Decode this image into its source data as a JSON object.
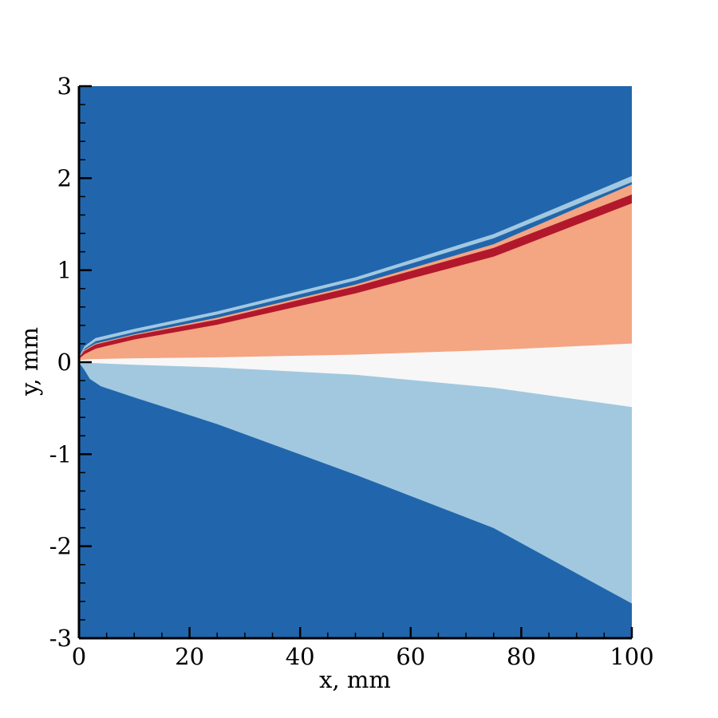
{
  "chart_data": {
    "type": "contour",
    "title": "",
    "xlabel": "x, mm",
    "ylabel": "y, mm",
    "xlim": [
      0,
      100
    ],
    "ylim": [
      -3,
      3
    ],
    "x_ticks": [
      0,
      20,
      40,
      60,
      80,
      100
    ],
    "x_tick_labels": [
      "0",
      "20",
      "40",
      "60",
      "80",
      "100"
    ],
    "y_ticks": [
      -3,
      -2,
      -1,
      0,
      1,
      2,
      3
    ],
    "y_tick_labels": [
      "-3",
      "-2",
      "-1",
      "0",
      "1",
      "2",
      "3"
    ],
    "grid": false,
    "legend": "none",
    "background_color": "#2166ac",
    "bands": [
      {
        "color": "#a2c8e0",
        "description": "upper thin light-blue layer",
        "top": [
          [
            0,
            0.05
          ],
          [
            1,
            0.17
          ],
          [
            3,
            0.26
          ],
          [
            10,
            0.36
          ],
          [
            25,
            0.55
          ],
          [
            50,
            0.92
          ],
          [
            75,
            1.39
          ],
          [
            100,
            2.02
          ]
        ],
        "bottom": [
          [
            0,
            0.05
          ],
          [
            1,
            0.15
          ],
          [
            3,
            0.23
          ],
          [
            10,
            0.33
          ],
          [
            25,
            0.52
          ],
          [
            50,
            0.89
          ],
          [
            75,
            1.35
          ],
          [
            100,
            1.96
          ]
        ]
      },
      {
        "color": "#f4a582",
        "description": "salmon region above centerline",
        "top": [
          [
            0,
            0.05
          ],
          [
            1,
            0.13
          ],
          [
            3,
            0.2
          ],
          [
            10,
            0.3
          ],
          [
            25,
            0.48
          ],
          [
            50,
            0.84
          ],
          [
            75,
            1.28
          ],
          [
            100,
            1.93
          ]
        ],
        "bottom": [
          [
            0,
            0.02
          ],
          [
            2,
            0.03
          ],
          [
            10,
            0.04
          ],
          [
            25,
            0.05
          ],
          [
            50,
            0.08
          ],
          [
            75,
            0.13
          ],
          [
            100,
            0.2
          ]
        ]
      },
      {
        "color": "#b2182b",
        "description": "dark red thin band",
        "top": [
          [
            0,
            0.05
          ],
          [
            1,
            0.12
          ],
          [
            3,
            0.19
          ],
          [
            10,
            0.29
          ],
          [
            25,
            0.46
          ],
          [
            50,
            0.82
          ],
          [
            75,
            1.24
          ],
          [
            100,
            1.82
          ]
        ],
        "bottom": [
          [
            0,
            0.04
          ],
          [
            1,
            0.09
          ],
          [
            3,
            0.15
          ],
          [
            10,
            0.25
          ],
          [
            25,
            0.41
          ],
          [
            50,
            0.75
          ],
          [
            75,
            1.15
          ],
          [
            100,
            1.73
          ]
        ]
      },
      {
        "color": "#f7f7f7",
        "description": "near-white central wedge",
        "top": [
          [
            0,
            0.02
          ],
          [
            2,
            0.03
          ],
          [
            10,
            0.04
          ],
          [
            25,
            0.05
          ],
          [
            50,
            0.08
          ],
          [
            75,
            0.13
          ],
          [
            100,
            0.2
          ]
        ],
        "bottom": [
          [
            0,
            0.0
          ],
          [
            2,
            -0.01
          ],
          [
            10,
            -0.03
          ],
          [
            25,
            -0.06
          ],
          [
            50,
            -0.14
          ],
          [
            75,
            -0.28
          ],
          [
            100,
            -0.49
          ]
        ]
      },
      {
        "color": "#a2c8e0",
        "description": "lower light-blue region",
        "top": [
          [
            0,
            0.0
          ],
          [
            2,
            -0.01
          ],
          [
            10,
            -0.03
          ],
          [
            25,
            -0.06
          ],
          [
            50,
            -0.14
          ],
          [
            75,
            -0.28
          ],
          [
            100,
            -0.49
          ]
        ],
        "bottom": [
          [
            0,
            0.0
          ],
          [
            1,
            -0.08
          ],
          [
            2,
            -0.18
          ],
          [
            4,
            -0.26
          ],
          [
            10,
            -0.38
          ],
          [
            25,
            -0.67
          ],
          [
            50,
            -1.22
          ],
          [
            75,
            -1.8
          ],
          [
            100,
            -2.62
          ]
        ]
      }
    ]
  }
}
